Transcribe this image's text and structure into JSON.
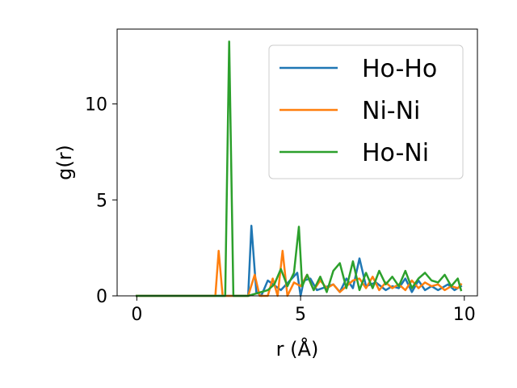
{
  "chart_data": {
    "type": "line",
    "title": "",
    "xlabel": "r (Å)",
    "ylabel": "g(r)",
    "xlim": [
      -0.6,
      10.4
    ],
    "ylim": [
      0,
      13.9
    ],
    "xticks": [
      0,
      5,
      10
    ],
    "xtick_labels": [
      "0",
      "5",
      "10"
    ],
    "yticks": [
      0,
      5,
      10
    ],
    "ytick_labels": [
      "0",
      "5",
      "10"
    ],
    "grid": false,
    "legend_position": "top-right",
    "series": [
      {
        "name": "Ho-Ho",
        "color": "#1f77b4",
        "x": [
          0.0,
          3.4,
          3.5,
          3.65,
          3.8,
          4.0,
          4.4,
          4.9,
          5.0,
          5.1,
          5.3,
          5.5,
          6.0,
          6.2,
          6.4,
          6.6,
          6.8,
          7.0,
          7.3,
          7.6,
          7.8,
          8.0,
          8.2,
          8.4,
          8.6,
          8.8,
          9.0,
          9.2,
          9.5,
          9.7,
          9.9
        ],
        "y": [
          0,
          0,
          3.65,
          0.2,
          0,
          0.8,
          0.3,
          1.2,
          0,
          0.8,
          0.9,
          0.3,
          0.6,
          0.2,
          0.9,
          0.4,
          1.95,
          0.5,
          0.7,
          0.3,
          0.5,
          0.4,
          0.9,
          0.2,
          0.8,
          0.3,
          0.5,
          0.3,
          0.6,
          0.3,
          0.5
        ]
      },
      {
        "name": "Ni-Ni",
        "color": "#ff7f0e",
        "x": [
          0.0,
          2.4,
          2.5,
          2.62,
          3.4,
          3.6,
          3.75,
          4.0,
          4.15,
          4.3,
          4.45,
          4.6,
          4.8,
          5.0,
          5.2,
          5.4,
          5.6,
          5.8,
          6.0,
          6.2,
          6.4,
          6.6,
          6.8,
          7.0,
          7.2,
          7.4,
          7.6,
          7.8,
          8.0,
          8.2,
          8.4,
          8.6,
          8.8,
          9.0,
          9.2,
          9.4,
          9.6,
          9.8,
          9.9
        ],
        "y": [
          0,
          0,
          2.35,
          0,
          0,
          1.1,
          0,
          0,
          0.9,
          0,
          2.35,
          0,
          0.7,
          0.5,
          1.1,
          0.3,
          0.8,
          0.4,
          0.6,
          0.2,
          0.5,
          0.8,
          0.9,
          0.4,
          1.0,
          0.3,
          0.7,
          0.4,
          0.6,
          0.3,
          0.8,
          0.4,
          0.7,
          0.5,
          0.6,
          0.3,
          0.5,
          0.4,
          0.6
        ]
      },
      {
        "name": "Ho-Ni",
        "color": "#2ca02c",
        "x": [
          0.0,
          2.7,
          2.82,
          2.95,
          3.2,
          3.4,
          4.0,
          4.2,
          4.4,
          4.6,
          4.8,
          4.95,
          5.05,
          5.2,
          5.4,
          5.6,
          5.8,
          6.0,
          6.2,
          6.4,
          6.6,
          6.8,
          7.0,
          7.2,
          7.4,
          7.6,
          7.8,
          8.0,
          8.2,
          8.4,
          8.6,
          8.8,
          9.0,
          9.2,
          9.4,
          9.6,
          9.8,
          9.9
        ],
        "y": [
          0,
          0,
          13.25,
          0,
          0,
          0,
          0.3,
          0.6,
          1.4,
          0.5,
          1.2,
          3.6,
          0.5,
          1.1,
          0.3,
          1.0,
          0.2,
          1.3,
          1.7,
          0.4,
          1.8,
          0.3,
          1.2,
          0.4,
          1.3,
          0.6,
          1.0,
          0.5,
          1.3,
          0.4,
          0.9,
          1.2,
          0.8,
          0.7,
          1.1,
          0.5,
          0.9,
          0.3
        ]
      }
    ]
  }
}
